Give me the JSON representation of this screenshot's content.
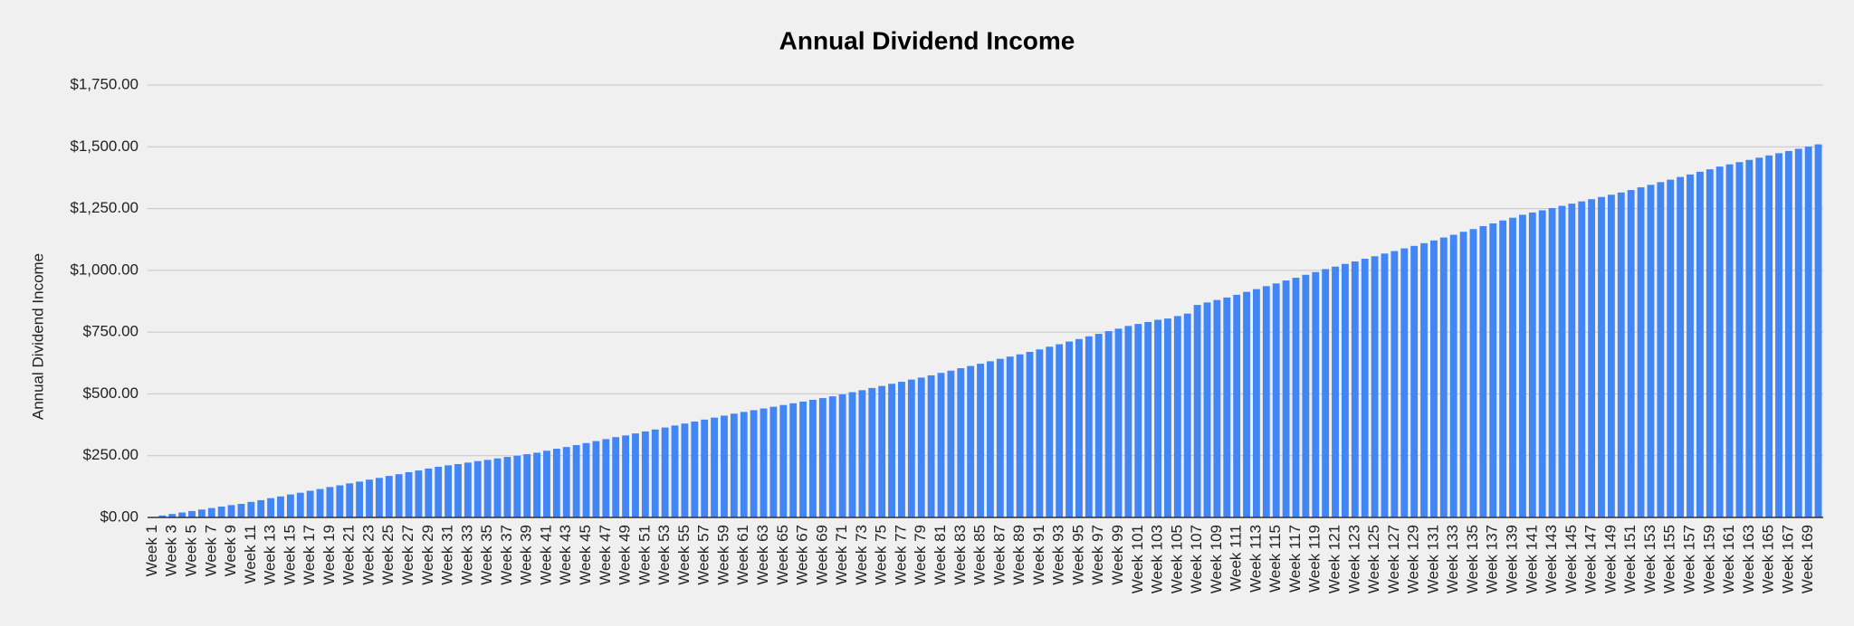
{
  "chart_data": {
    "type": "bar",
    "title": "Annual Dividend Income",
    "y_label": "Annual Dividend Income",
    "categories": [
      "Week 1",
      null,
      "Week 3",
      null,
      "Week 5",
      null,
      "Week 7",
      null,
      "Week 9",
      null,
      "Week 11",
      null,
      "Week 13",
      null,
      "Week 15",
      null,
      "Week 17",
      null,
      "Week 19",
      null,
      "Week 21",
      null,
      "Week 23",
      null,
      "Week 25",
      null,
      "Week 27",
      null,
      "Week 29",
      null,
      "Week 31",
      null,
      "Week 33",
      null,
      "Week 35",
      null,
      "Week 37",
      null,
      "Week 39",
      null,
      "Week 41",
      null,
      "Week 43",
      null,
      "Week 45",
      null,
      "Week 47",
      null,
      "Week 49",
      null,
      "Week 51",
      null,
      "Week 53",
      null,
      "Week 55",
      null,
      "Week 57",
      null,
      "Week 59",
      null,
      "Week 61",
      null,
      "Week 63",
      null,
      "Week 65",
      null,
      "Week 67",
      null,
      "Week 69",
      null,
      "Week 71",
      null,
      "Week 73",
      null,
      "Week 75",
      null,
      "Week 77",
      null,
      "Week 79",
      null,
      "Week 81",
      null,
      "Week 83",
      null,
      "Week 85",
      null,
      "Week 87",
      null,
      "Week 89",
      null,
      "Week 91",
      null,
      "Week 93",
      null,
      "Week 95",
      null,
      "Week 97",
      null,
      "Week 99",
      null,
      "Week 101",
      null,
      "Week 103",
      null,
      "Week 105",
      null,
      "Week 107",
      null,
      "Week 109",
      null,
      "Week 111",
      null,
      "Week 113",
      null,
      "Week 115",
      null,
      "Week 117",
      null,
      "Week 119",
      null,
      "Week 121",
      null,
      "Week 123",
      null,
      "Week 125",
      null,
      "Week 127",
      null,
      "Week 129",
      null,
      "Week 131",
      null,
      "Week 133",
      null,
      "Week 135",
      null,
      "Week 137",
      null,
      "Week 139",
      null,
      "Week 141",
      null,
      "Week 143",
      null,
      "Week 145",
      null,
      "Week 147",
      null,
      "Week 149",
      null,
      "Week 151",
      null,
      "Week 153",
      null,
      "Week 155",
      null,
      "Week 157",
      null,
      "Week 159",
      null,
      "Week 161",
      null,
      "Week 163",
      null,
      "Week 165",
      null,
      "Week 167",
      null,
      "Week 169",
      null
    ],
    "values": [
      2,
      8,
      14,
      20,
      26,
      32,
      38,
      44,
      50,
      55,
      63,
      70,
      78,
      85,
      93,
      100,
      108,
      115,
      123,
      130,
      138,
      145,
      153,
      160,
      168,
      175,
      183,
      190,
      198,
      205,
      211,
      216,
      222,
      228,
      233,
      239,
      245,
      250,
      256,
      262,
      270,
      278,
      285,
      293,
      301,
      309,
      317,
      325,
      332,
      340,
      348,
      356,
      364,
      372,
      380,
      388,
      396,
      404,
      412,
      420,
      427,
      434,
      441,
      448,
      455,
      462,
      469,
      476,
      483,
      490,
      498,
      507,
      515,
      524,
      532,
      541,
      549,
      558,
      566,
      575,
      585,
      594,
      604,
      613,
      622,
      632,
      642,
      651,
      660,
      670,
      680,
      691,
      701,
      712,
      722,
      733,
      743,
      754,
      764,
      775,
      783,
      791,
      800,
      805,
      815,
      825,
      860,
      870,
      880,
      890,
      901,
      913,
      924,
      936,
      947,
      959,
      970,
      982,
      993,
      1005,
      1015,
      1026,
      1036,
      1047,
      1057,
      1068,
      1078,
      1089,
      1099,
      1110,
      1121,
      1133,
      1144,
      1156,
      1167,
      1179,
      1190,
      1202,
      1213,
      1225,
      1234,
      1243,
      1252,
      1261,
      1270,
      1279,
      1288,
      1297,
      1306,
      1315,
      1325,
      1336,
      1346,
      1357,
      1367,
      1378,
      1388,
      1399,
      1409,
      1420,
      1429,
      1438,
      1447,
      1456,
      1465,
      1474,
      1483,
      1492,
      1501,
      1510
    ],
    "color": "#4285f4",
    "ylim": [
      0,
      1750
    ],
    "yticks": [
      {
        "value": 0,
        "label": "$0.00"
      },
      {
        "value": 250,
        "label": "$250.00"
      },
      {
        "value": 500,
        "label": "$500.00"
      },
      {
        "value": 750,
        "label": "$750.00"
      },
      {
        "value": 1000,
        "label": "$1,000.00"
      },
      {
        "value": 1250,
        "label": "$1,250.00"
      },
      {
        "value": 1500,
        "label": "$1,500.00"
      },
      {
        "value": 1750,
        "label": "$1,750.00"
      }
    ],
    "grid": true
  }
}
